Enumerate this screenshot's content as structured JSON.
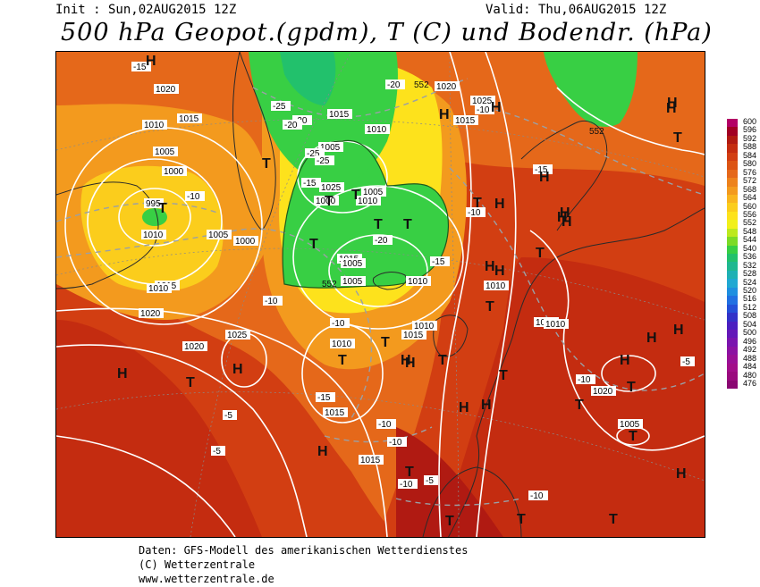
{
  "header": {
    "init": "Init : Sun,02AUG2015 12Z",
    "valid": "Valid: Thu,06AUG2015 12Z",
    "title": "500 hPa Geopot.(gpdm), T (C) und Bodendr. (hPa)"
  },
  "legend": {
    "levels": [
      "600",
      "596",
      "592",
      "588",
      "584",
      "580",
      "576",
      "572",
      "568",
      "564",
      "560",
      "556",
      "552",
      "548",
      "544",
      "540",
      "536",
      "532",
      "528",
      "524",
      "520",
      "516",
      "512",
      "508",
      "504",
      "500",
      "496",
      "492",
      "488",
      "484",
      "480",
      "476"
    ],
    "colors": [
      "#b30066",
      "#a10024",
      "#b01a12",
      "#c42c10",
      "#d23e12",
      "#dc5414",
      "#e5681a",
      "#ed821c",
      "#f39a1e",
      "#f9b51e",
      "#fbcd1c",
      "#fde21c",
      "#f1f01a",
      "#bde91e",
      "#7cdb26",
      "#38cf44",
      "#22c16c",
      "#1fb890",
      "#1fb0b4",
      "#20a8d2",
      "#1e8fe0",
      "#2170e2",
      "#2450d8",
      "#3232c8",
      "#4a1fc0",
      "#6418b8",
      "#7a14ae",
      "#8c12a2",
      "#9a1096",
      "#a20e8a",
      "#9a0a7e",
      "#8a0672"
    ]
  },
  "map": {
    "pressure_labels": [
      "1020",
      "1015",
      "1010",
      "1005",
      "1000",
      "995",
      "1010",
      "1015",
      "1010",
      "1005",
      "1000",
      "1020",
      "1025",
      "1015",
      "1010",
      "1005",
      "1000",
      "1005",
      "1010",
      "1015",
      "1010",
      "1005",
      "1025",
      "1020",
      "1015",
      "1010",
      "1020",
      "1010",
      "1015",
      "1010",
      "1025",
      "1015",
      "1005",
      "1010",
      "1015",
      "1010",
      "1005",
      "1020",
      "1015"
    ],
    "temp_labels": [
      "-15",
      "-10",
      "-5",
      "-25",
      "-20",
      "-25",
      "-20",
      "-15",
      "-25",
      "-10",
      "-5",
      "-15",
      "-20",
      "-10",
      "-15",
      "-10",
      "-5",
      "-10",
      "-20",
      "-15",
      "-10",
      "-10",
      "-10",
      "-5",
      "-10",
      "-10"
    ],
    "isohypse_label": "552",
    "high_symbol": "H",
    "low_symbol": "T"
  },
  "footer": {
    "line1": "Daten: GFS-Modell des amerikanischen Wetterdienstes",
    "line2": "(C) Wetterzentrale",
    "line3": "www.wetterzentrale.de"
  }
}
